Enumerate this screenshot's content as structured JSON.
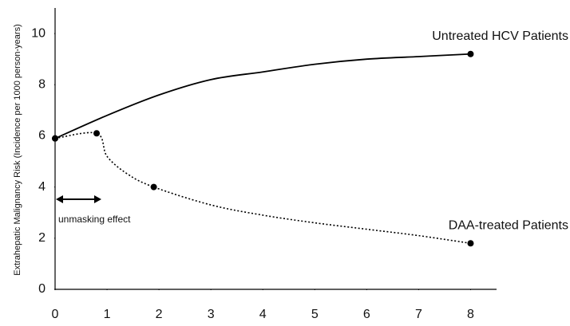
{
  "chart_data": {
    "type": "line",
    "y_label": "Extrahepatic Malignancy Risk (Incidence per 1000 person-years)",
    "xlim": [
      0,
      8.5
    ],
    "ylim": [
      0,
      11
    ],
    "xticks": [
      0,
      1,
      2,
      3,
      4,
      5,
      6,
      7,
      8
    ],
    "yticks": [
      0,
      2,
      4,
      6,
      8,
      10
    ],
    "grid": false,
    "series": [
      {
        "name": "Untreated HCV Patients",
        "color": "#000000",
        "dash": "solid",
        "x": [
          0,
          1,
          2,
          3,
          4,
          5,
          6,
          7,
          8
        ],
        "values": [
          5.9,
          6.8,
          7.6,
          8.2,
          8.5,
          8.8,
          9.0,
          9.1,
          9.2
        ],
        "markers": [
          true,
          false,
          false,
          false,
          false,
          false,
          false,
          false,
          true
        ]
      },
      {
        "name": "DAA-treated Patients",
        "color": "#000000",
        "dash": "dotted",
        "x": [
          0,
          0.8,
          1.0,
          1.4,
          1.9,
          3,
          4,
          5,
          6,
          7,
          8
        ],
        "values": [
          5.9,
          6.1,
          5.2,
          4.5,
          4.0,
          3.3,
          2.9,
          2.6,
          2.35,
          2.1,
          1.8
        ],
        "markers": [
          true,
          true,
          false,
          false,
          true,
          false,
          false,
          false,
          false,
          false,
          true
        ]
      }
    ],
    "annotations": [
      "unmasking effect"
    ]
  }
}
